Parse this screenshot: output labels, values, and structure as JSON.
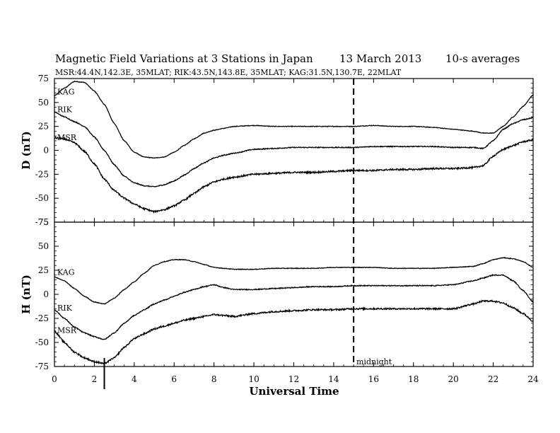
{
  "header": {
    "title": "Magnetic Field Variations at 3 Stations in Japan",
    "date": "13  March   2013",
    "averaging": "10-s averages",
    "stations_line": "MSR:44.4N,142.3E, 35MLAT;  RIK:43.5N,143.8E, 35MLAT;  KAG:31.5N,130.7E, 22MLAT"
  },
  "chart_data": [
    {
      "type": "line",
      "panel": "D",
      "ylabel": "D (nT)",
      "ylim": [
        -75,
        75
      ],
      "yticks": [
        "75",
        "50",
        "25",
        "0",
        "-25",
        "-50",
        "-75"
      ],
      "xlim": [
        0,
        24
      ],
      "series": [
        {
          "name": "KAG",
          "x": [
            0,
            0.5,
            1,
            1.5,
            2,
            2.5,
            3,
            3.5,
            4,
            4.5,
            5,
            5.5,
            6,
            6.5,
            7,
            7.5,
            8,
            8.5,
            9,
            10,
            11,
            12,
            13,
            14,
            15,
            16,
            17,
            18,
            19,
            20,
            21,
            21.5,
            22,
            22.5,
            23,
            23.5,
            24
          ],
          "values": [
            57,
            65,
            72,
            71,
            62,
            48,
            28,
            10,
            -2,
            -7,
            -8,
            -7,
            -2,
            5,
            12,
            18,
            21,
            23,
            25,
            26,
            25,
            25,
            25,
            25,
            25,
            26,
            25,
            25,
            24,
            22,
            20,
            18,
            18,
            25,
            35,
            46,
            58
          ]
        },
        {
          "name": "RIK",
          "x": [
            0,
            0.5,
            1,
            1.5,
            2,
            2.5,
            3,
            3.5,
            4,
            4.5,
            5,
            5.5,
            6,
            6.5,
            7,
            7.5,
            8,
            8.5,
            9,
            10,
            11,
            12,
            13,
            14,
            15,
            16,
            17,
            18,
            19,
            20,
            21,
            21.5,
            22,
            22.5,
            23,
            23.5,
            24
          ],
          "values": [
            40,
            35,
            30,
            25,
            14,
            0,
            -15,
            -27,
            -34,
            -37,
            -38,
            -36,
            -32,
            -26,
            -19,
            -13,
            -8,
            -5,
            -3,
            1,
            2,
            3,
            3,
            3,
            3,
            4,
            4,
            4,
            4,
            3,
            3,
            2,
            10,
            22,
            28,
            32,
            34
          ]
        },
        {
          "name": "MSR",
          "x": [
            0,
            0.5,
            1,
            1.5,
            2,
            2.5,
            3,
            3.5,
            4,
            4.5,
            5,
            5.5,
            6,
            6.5,
            7,
            7.5,
            8,
            8.5,
            9,
            10,
            11,
            12,
            13,
            14,
            15,
            16,
            17,
            18,
            19,
            20,
            21,
            21.5,
            22,
            22.5,
            23,
            23.5,
            24
          ],
          "values": [
            13,
            12,
            8,
            -1,
            -14,
            -30,
            -42,
            -50,
            -56,
            -61,
            -64,
            -62,
            -58,
            -52,
            -45,
            -38,
            -33,
            -30,
            -28,
            -25,
            -24,
            -23,
            -23,
            -22,
            -21,
            -21,
            -20,
            -20,
            -19,
            -19,
            -18,
            -16,
            -6,
            1,
            5,
            9,
            11
          ]
        }
      ]
    },
    {
      "type": "line",
      "panel": "H",
      "ylabel": "H (nT)",
      "ylim": [
        -75,
        75
      ],
      "yticks": [
        "75",
        "50",
        "25",
        "0",
        "-25",
        "-50",
        "-75"
      ],
      "xlim": [
        0,
        24
      ],
      "xticks": [
        "0",
        "2",
        "4",
        "6",
        "8",
        "10",
        "12",
        "14",
        "16",
        "18",
        "20",
        "22",
        "24"
      ],
      "xlabel": "Universal Time",
      "series": [
        {
          "name": "KAG",
          "x": [
            0,
            0.5,
            1,
            1.5,
            2,
            2.5,
            3,
            3.5,
            4,
            4.5,
            5,
            5.5,
            6,
            6.5,
            7,
            7.5,
            8,
            8.5,
            9,
            10,
            11,
            12,
            13,
            14,
            15,
            16,
            17,
            18,
            19,
            20,
            21,
            21.5,
            22,
            22.5,
            23,
            23.5,
            24
          ],
          "values": [
            18,
            14,
            6,
            -2,
            -8,
            -10,
            -4,
            5,
            13,
            22,
            30,
            34,
            36,
            36,
            34,
            31,
            28,
            27,
            26,
            26,
            27,
            27,
            27,
            28,
            28,
            28,
            27,
            27,
            27,
            28,
            29,
            32,
            36,
            38,
            37,
            34,
            28
          ]
        },
        {
          "name": "RIK",
          "x": [
            0,
            0.5,
            1,
            1.5,
            2,
            2.5,
            3,
            3.5,
            4,
            4.5,
            5,
            5.5,
            6,
            6.5,
            7,
            7.5,
            8,
            8.5,
            9,
            10,
            11,
            12,
            13,
            14,
            15,
            16,
            17,
            18,
            19,
            20,
            21,
            21.5,
            22,
            22.5,
            23,
            23.5,
            24
          ],
          "values": [
            -16,
            -25,
            -34,
            -40,
            -44,
            -47,
            -40,
            -30,
            -22,
            -16,
            -10,
            -6,
            -2,
            2,
            5,
            8,
            10,
            7,
            5,
            5,
            6,
            7,
            8,
            8,
            9,
            9,
            9,
            9,
            9,
            10,
            14,
            17,
            20,
            20,
            14,
            4,
            -8
          ]
        },
        {
          "name": "MSR",
          "x": [
            0,
            0.5,
            1,
            1.5,
            2,
            2.5,
            3,
            3.5,
            4,
            4.5,
            5,
            5.5,
            6,
            6.5,
            7,
            7.5,
            8,
            8.5,
            9,
            10,
            11,
            12,
            13,
            14,
            15,
            16,
            17,
            18,
            19,
            20,
            21,
            21.5,
            22,
            22.5,
            23,
            23.5,
            24
          ],
          "values": [
            -38,
            -50,
            -60,
            -66,
            -70,
            -72,
            -66,
            -55,
            -46,
            -41,
            -36,
            -33,
            -30,
            -27,
            -25,
            -23,
            -21,
            -22,
            -23,
            -20,
            -18,
            -17,
            -16,
            -16,
            -15,
            -15,
            -15,
            -15,
            -15,
            -15,
            -10,
            -7,
            -7,
            -9,
            -14,
            -20,
            -28
          ]
        }
      ]
    }
  ],
  "annotations": {
    "midnight_label": "midnight",
    "midnight_ut": 15,
    "event_ut": 2.5
  }
}
